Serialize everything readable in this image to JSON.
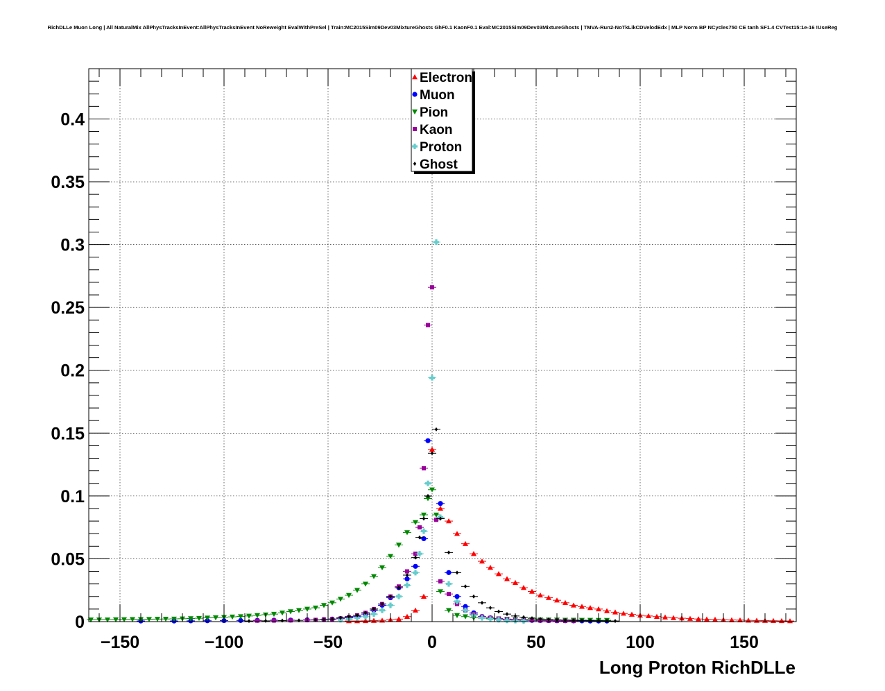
{
  "chart_data": {
    "type": "scatter",
    "title": "RichDLLe Muon Long | All NaturalMix AllPhysTracksInEvent:AllPhysTracksInEvent NoReweight EvalWithPreSel | Train:MC2015Sim09Dev03MixtureGhosts GhF0.1 KaonF0.1 Eval:MC2015Sim09Dev03MixtureGhosts | TMVA-Run2-NoTkLikCDVelodEdx | MLP Norm BP NCycles750 CE tanh SF1.4 CVTest15:1e-16 !UseReg",
    "xlabel": "Long Proton RichDLLe",
    "ylabel": "",
    "xlim": [
      -165,
      175
    ],
    "ylim": [
      0,
      0.44
    ],
    "x_ticks": [
      -150,
      -100,
      -50,
      0,
      50,
      100,
      150
    ],
    "x_tick_labels": [
      "−150",
      "−100",
      "−50",
      "0",
      "50",
      "100",
      "150"
    ],
    "y_ticks": [
      0,
      0.05,
      0.1,
      0.15,
      0.2,
      0.25,
      0.3,
      0.35,
      0.4
    ],
    "y_tick_labels": [
      "0",
      "0.05",
      "0.1",
      "0.15",
      "0.2",
      "0.25",
      "0.3",
      "0.35",
      "0.4"
    ],
    "grid": true,
    "legend_position": "top-center",
    "series": [
      {
        "name": "Electron",
        "color": "#ff0000",
        "marker": "triangle-up",
        "points": [
          [
            -40,
            0.0005
          ],
          [
            -36,
            0.0005
          ],
          [
            -32,
            0.0006
          ],
          [
            -28,
            0.0008
          ],
          [
            -24,
            0.001
          ],
          [
            -20,
            0.0015
          ],
          [
            -16,
            0.002
          ],
          [
            -12,
            0.004
          ],
          [
            -8,
            0.009
          ],
          [
            -4,
            0.02
          ],
          [
            0,
            0.137
          ],
          [
            4,
            0.09
          ],
          [
            8,
            0.08
          ],
          [
            12,
            0.07
          ],
          [
            16,
            0.062
          ],
          [
            20,
            0.054
          ],
          [
            24,
            0.048
          ],
          [
            28,
            0.043
          ],
          [
            32,
            0.038
          ],
          [
            36,
            0.034
          ],
          [
            40,
            0.031
          ],
          [
            44,
            0.027
          ],
          [
            48,
            0.024
          ],
          [
            52,
            0.021
          ],
          [
            56,
            0.019
          ],
          [
            60,
            0.017
          ],
          [
            64,
            0.015
          ],
          [
            68,
            0.013
          ],
          [
            72,
            0.012
          ],
          [
            76,
            0.011
          ],
          [
            80,
            0.01
          ],
          [
            84,
            0.0085
          ],
          [
            88,
            0.0075
          ],
          [
            92,
            0.0065
          ],
          [
            96,
            0.0057
          ],
          [
            100,
            0.005
          ],
          [
            104,
            0.0045
          ],
          [
            108,
            0.004
          ],
          [
            112,
            0.0035
          ],
          [
            116,
            0.003
          ],
          [
            120,
            0.0027
          ],
          [
            124,
            0.0024
          ],
          [
            128,
            0.0021
          ],
          [
            132,
            0.0019
          ],
          [
            136,
            0.0017
          ],
          [
            140,
            0.0015
          ],
          [
            144,
            0.0013
          ],
          [
            148,
            0.0012
          ],
          [
            152,
            0.001
          ],
          [
            156,
            0.0009
          ],
          [
            160,
            0.0008
          ],
          [
            164,
            0.0007
          ],
          [
            168,
            0.0006
          ],
          [
            172,
            0.0005
          ]
        ]
      },
      {
        "name": "Muon",
        "color": "#0000ff",
        "marker": "circle",
        "points": [
          [
            -140,
            0.0005
          ],
          [
            -124,
            0.0005
          ],
          [
            -116,
            0.0006
          ],
          [
            -108,
            0.0007
          ],
          [
            -100,
            0.0008
          ],
          [
            -92,
            0.0009
          ],
          [
            -84,
            0.001
          ],
          [
            -76,
            0.0011
          ],
          [
            -68,
            0.0012
          ],
          [
            -60,
            0.0014
          ],
          [
            -52,
            0.0016
          ],
          [
            -48,
            0.002
          ],
          [
            -44,
            0.0025
          ],
          [
            -40,
            0.003
          ],
          [
            -36,
            0.004
          ],
          [
            -32,
            0.006
          ],
          [
            -28,
            0.009
          ],
          [
            -24,
            0.013
          ],
          [
            -20,
            0.019
          ],
          [
            -16,
            0.027
          ],
          [
            -12,
            0.034
          ],
          [
            -8,
            0.044
          ],
          [
            -4,
            0.066
          ],
          [
            -2,
            0.144
          ],
          [
            4,
            0.094
          ],
          [
            8,
            0.039
          ],
          [
            12,
            0.02
          ],
          [
            16,
            0.012
          ],
          [
            20,
            0.007
          ],
          [
            24,
            0.004
          ],
          [
            28,
            0.003
          ],
          [
            32,
            0.002
          ],
          [
            36,
            0.0015
          ],
          [
            40,
            0.0013
          ],
          [
            44,
            0.0011
          ],
          [
            48,
            0.001
          ],
          [
            52,
            0.0009
          ],
          [
            56,
            0.0008
          ],
          [
            60,
            0.0007
          ],
          [
            64,
            0.0007
          ],
          [
            68,
            0.0006
          ],
          [
            72,
            0.0006
          ],
          [
            76,
            0.0005
          ],
          [
            80,
            0.0005
          ],
          [
            84,
            0.0005
          ]
        ]
      },
      {
        "name": "Pion",
        "color": "#008800",
        "marker": "triangle-down",
        "points": [
          [
            -164,
            0.0015
          ],
          [
            -160,
            0.0015
          ],
          [
            -156,
            0.0015
          ],
          [
            -152,
            0.0016
          ],
          [
            -148,
            0.0017
          ],
          [
            -144,
            0.0018
          ],
          [
            -140,
            0.0018
          ],
          [
            -136,
            0.0019
          ],
          [
            -132,
            0.002
          ],
          [
            -128,
            0.0021
          ],
          [
            -124,
            0.0022
          ],
          [
            -120,
            0.0023
          ],
          [
            -116,
            0.0025
          ],
          [
            -112,
            0.0027
          ],
          [
            -108,
            0.003
          ],
          [
            -104,
            0.0032
          ],
          [
            -100,
            0.0035
          ],
          [
            -96,
            0.0038
          ],
          [
            -92,
            0.0041
          ],
          [
            -88,
            0.0045
          ],
          [
            -84,
            0.005
          ],
          [
            -80,
            0.0055
          ],
          [
            -76,
            0.006
          ],
          [
            -72,
            0.007
          ],
          [
            -68,
            0.008
          ],
          [
            -64,
            0.009
          ],
          [
            -60,
            0.01
          ],
          [
            -56,
            0.011
          ],
          [
            -52,
            0.013
          ],
          [
            -48,
            0.015
          ],
          [
            -44,
            0.018
          ],
          [
            -40,
            0.021
          ],
          [
            -36,
            0.025
          ],
          [
            -32,
            0.03
          ],
          [
            -28,
            0.036
          ],
          [
            -24,
            0.043
          ],
          [
            -20,
            0.052
          ],
          [
            -16,
            0.061
          ],
          [
            -12,
            0.071
          ],
          [
            -8,
            0.079
          ],
          [
            -4,
            0.085
          ],
          [
            -2,
            0.098
          ],
          [
            0,
            0.105
          ],
          [
            2,
            0.085
          ],
          [
            4,
            0.024
          ],
          [
            8,
            0.009
          ],
          [
            12,
            0.005
          ],
          [
            16,
            0.004
          ],
          [
            20,
            0.003
          ],
          [
            24,
            0.0028
          ],
          [
            28,
            0.0025
          ],
          [
            32,
            0.0022
          ],
          [
            36,
            0.002
          ],
          [
            40,
            0.0018
          ],
          [
            44,
            0.0017
          ],
          [
            48,
            0.0016
          ],
          [
            52,
            0.0015
          ],
          [
            56,
            0.0014
          ],
          [
            60,
            0.0014
          ],
          [
            64,
            0.0013
          ],
          [
            68,
            0.0013
          ],
          [
            72,
            0.0012
          ],
          [
            76,
            0.0012
          ],
          [
            80,
            0.0011
          ],
          [
            84,
            0.0011
          ]
        ]
      },
      {
        "name": "Kaon",
        "color": "#990099",
        "marker": "square",
        "points": [
          [
            -84,
            0.0008
          ],
          [
            -76,
            0.0009
          ],
          [
            -68,
            0.001
          ],
          [
            -60,
            0.0012
          ],
          [
            -56,
            0.0014
          ],
          [
            -52,
            0.0017
          ],
          [
            -48,
            0.002
          ],
          [
            -44,
            0.0025
          ],
          [
            -40,
            0.0035
          ],
          [
            -36,
            0.005
          ],
          [
            -32,
            0.007
          ],
          [
            -28,
            0.01
          ],
          [
            -24,
            0.014
          ],
          [
            -20,
            0.02
          ],
          [
            -16,
            0.028
          ],
          [
            -12,
            0.04
          ],
          [
            -8,
            0.054
          ],
          [
            -6,
            0.075
          ],
          [
            -4,
            0.122
          ],
          [
            -2,
            0.236
          ],
          [
            0,
            0.266
          ],
          [
            2,
            0.081
          ],
          [
            4,
            0.032
          ],
          [
            8,
            0.022
          ],
          [
            12,
            0.014
          ],
          [
            16,
            0.009
          ],
          [
            20,
            0.006
          ],
          [
            24,
            0.004
          ],
          [
            28,
            0.003
          ],
          [
            32,
            0.0025
          ],
          [
            36,
            0.002
          ],
          [
            40,
            0.0016
          ],
          [
            44,
            0.0013
          ],
          [
            48,
            0.0011
          ],
          [
            52,
            0.0009
          ],
          [
            56,
            0.0008
          ],
          [
            60,
            0.0007
          ],
          [
            64,
            0.0006
          ],
          [
            68,
            0.0005
          ]
        ]
      },
      {
        "name": "Proton",
        "color": "#66cccc",
        "marker": "cross",
        "points": [
          [
            -44,
            0.0015
          ],
          [
            -40,
            0.002
          ],
          [
            -36,
            0.003
          ],
          [
            -32,
            0.004
          ],
          [
            -28,
            0.006
          ],
          [
            -24,
            0.009
          ],
          [
            -20,
            0.013
          ],
          [
            -16,
            0.02
          ],
          [
            -12,
            0.029
          ],
          [
            -8,
            0.039
          ],
          [
            -6,
            0.054
          ],
          [
            -4,
            0.072
          ],
          [
            -2,
            0.11
          ],
          [
            0,
            0.194
          ],
          [
            2,
            0.302
          ],
          [
            4,
            0.083
          ],
          [
            8,
            0.03
          ],
          [
            12,
            0.016
          ],
          [
            16,
            0.009
          ],
          [
            20,
            0.005
          ],
          [
            24,
            0.003
          ],
          [
            28,
            0.002
          ],
          [
            32,
            0.0015
          ],
          [
            36,
            0.001
          ],
          [
            40,
            0.0008
          ],
          [
            44,
            0.0006
          ]
        ]
      },
      {
        "name": "Ghost",
        "color": "#000000",
        "marker": "diamond",
        "points": [
          [
            -88,
            0.0005
          ],
          [
            -80,
            0.0006
          ],
          [
            -72,
            0.0008
          ],
          [
            -64,
            0.001
          ],
          [
            -56,
            0.0013
          ],
          [
            -52,
            0.0016
          ],
          [
            -48,
            0.002
          ],
          [
            -44,
            0.003
          ],
          [
            -40,
            0.004
          ],
          [
            -36,
            0.005
          ],
          [
            -32,
            0.007
          ],
          [
            -28,
            0.01
          ],
          [
            -24,
            0.014
          ],
          [
            -20,
            0.02
          ],
          [
            -16,
            0.027
          ],
          [
            -12,
            0.037
          ],
          [
            -8,
            0.051
          ],
          [
            -6,
            0.067
          ],
          [
            -4,
            0.082
          ],
          [
            -2,
            0.1
          ],
          [
            0,
            0.134
          ],
          [
            2,
            0.153
          ],
          [
            4,
            0.082
          ],
          [
            8,
            0.055
          ],
          [
            12,
            0.039
          ],
          [
            16,
            0.028
          ],
          [
            20,
            0.02
          ],
          [
            24,
            0.015
          ],
          [
            28,
            0.011
          ],
          [
            32,
            0.008
          ],
          [
            36,
            0.006
          ],
          [
            40,
            0.0045
          ],
          [
            44,
            0.0035
          ],
          [
            48,
            0.0027
          ],
          [
            52,
            0.0021
          ],
          [
            56,
            0.0017
          ],
          [
            60,
            0.0014
          ],
          [
            64,
            0.0012
          ],
          [
            68,
            0.001
          ],
          [
            72,
            0.0009
          ],
          [
            76,
            0.0008
          ],
          [
            80,
            0.0007
          ],
          [
            84,
            0.0006
          ],
          [
            88,
            0.0005
          ]
        ]
      }
    ]
  }
}
